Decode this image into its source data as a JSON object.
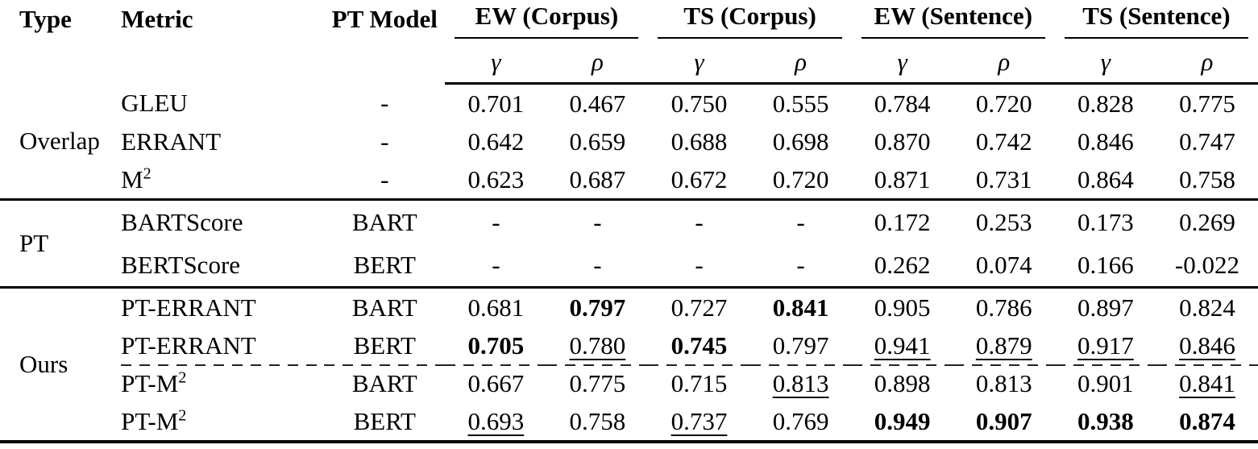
{
  "table": {
    "columns": {
      "type": "Type",
      "metric": "Metric",
      "pt_model": "PT Model"
    },
    "subcol_labels": {
      "gamma": "γ",
      "rho": "ρ"
    },
    "groups": [
      {
        "label": "EW (Corpus)"
      },
      {
        "label": "TS (Corpus)"
      },
      {
        "label": "EW (Sentence)"
      },
      {
        "label": "TS (Sentence)"
      }
    ],
    "sections": [
      {
        "type_label": "Overlap",
        "rows": [
          {
            "metric": "GLEU",
            "metric_sup": "",
            "pt_model": "-",
            "values": [
              {
                "t": "0.701",
                "s": "p"
              },
              {
                "t": "0.467",
                "s": "p"
              },
              {
                "t": "0.750",
                "s": "p"
              },
              {
                "t": "0.555",
                "s": "p"
              },
              {
                "t": "0.784",
                "s": "p"
              },
              {
                "t": "0.720",
                "s": "p"
              },
              {
                "t": "0.828",
                "s": "p"
              },
              {
                "t": "0.775",
                "s": "p"
              }
            ]
          },
          {
            "metric": "ERRANT",
            "metric_sup": "",
            "pt_model": "-",
            "values": [
              {
                "t": "0.642",
                "s": "p"
              },
              {
                "t": "0.659",
                "s": "p"
              },
              {
                "t": "0.688",
                "s": "p"
              },
              {
                "t": "0.698",
                "s": "p"
              },
              {
                "t": "0.870",
                "s": "p"
              },
              {
                "t": "0.742",
                "s": "p"
              },
              {
                "t": "0.846",
                "s": "p"
              },
              {
                "t": "0.747",
                "s": "p"
              }
            ]
          },
          {
            "metric": "M",
            "metric_sup": "2",
            "pt_model": "-",
            "values": [
              {
                "t": "0.623",
                "s": "p"
              },
              {
                "t": "0.687",
                "s": "p"
              },
              {
                "t": "0.672",
                "s": "p"
              },
              {
                "t": "0.720",
                "s": "p"
              },
              {
                "t": "0.871",
                "s": "p"
              },
              {
                "t": "0.731",
                "s": "p"
              },
              {
                "t": "0.864",
                "s": "p"
              },
              {
                "t": "0.758",
                "s": "p"
              }
            ]
          }
        ]
      },
      {
        "type_label": "PT",
        "tall": true,
        "rows": [
          {
            "metric": "BARTScore",
            "metric_sup": "",
            "pt_model": "BART",
            "values": [
              {
                "t": "-",
                "s": "p"
              },
              {
                "t": "-",
                "s": "p"
              },
              {
                "t": "-",
                "s": "p"
              },
              {
                "t": "-",
                "s": "p"
              },
              {
                "t": "0.172",
                "s": "p"
              },
              {
                "t": "0.253",
                "s": "p"
              },
              {
                "t": "0.173",
                "s": "p"
              },
              {
                "t": "0.269",
                "s": "p"
              }
            ]
          },
          {
            "metric": "BERTScore",
            "metric_sup": "",
            "pt_model": "BERT",
            "values": [
              {
                "t": "-",
                "s": "p"
              },
              {
                "t": "-",
                "s": "p"
              },
              {
                "t": "-",
                "s": "p"
              },
              {
                "t": "-",
                "s": "p"
              },
              {
                "t": "0.262",
                "s": "p"
              },
              {
                "t": "0.074",
                "s": "p"
              },
              {
                "t": "0.166",
                "s": "p"
              },
              {
                "t": "-0.022",
                "s": "p"
              }
            ]
          }
        ]
      },
      {
        "type_label": "Ours",
        "rows": [
          {
            "metric": "PT-ERRANT",
            "metric_sup": "",
            "pt_model": "BART",
            "values": [
              {
                "t": "0.681",
                "s": "p"
              },
              {
                "t": "0.797",
                "s": "b"
              },
              {
                "t": "0.727",
                "s": "p"
              },
              {
                "t": "0.841",
                "s": "b"
              },
              {
                "t": "0.905",
                "s": "p"
              },
              {
                "t": "0.786",
                "s": "p"
              },
              {
                "t": "0.897",
                "s": "p"
              },
              {
                "t": "0.824",
                "s": "p"
              }
            ]
          },
          {
            "metric": "PT-ERRANT",
            "metric_sup": "",
            "pt_model": "BERT",
            "values": [
              {
                "t": "0.705",
                "s": "b"
              },
              {
                "t": "0.780",
                "s": "u"
              },
              {
                "t": "0.745",
                "s": "b"
              },
              {
                "t": "0.797",
                "s": "p"
              },
              {
                "t": "0.941",
                "s": "u"
              },
              {
                "t": "0.879",
                "s": "u"
              },
              {
                "t": "0.917",
                "s": "u"
              },
              {
                "t": "0.846",
                "s": "u"
              }
            ]
          },
          {
            "metric": "PT-M",
            "metric_sup": "2",
            "pt_model": "BART",
            "dashed_before": true,
            "values": [
              {
                "t": "0.667",
                "s": "p"
              },
              {
                "t": "0.775",
                "s": "p"
              },
              {
                "t": "0.715",
                "s": "p"
              },
              {
                "t": "0.813",
                "s": "u"
              },
              {
                "t": "0.898",
                "s": "p"
              },
              {
                "t": "0.813",
                "s": "p"
              },
              {
                "t": "0.901",
                "s": "p"
              },
              {
                "t": "0.841",
                "s": "u"
              }
            ]
          },
          {
            "metric": "PT-M",
            "metric_sup": "2",
            "pt_model": "BERT",
            "values": [
              {
                "t": "0.693",
                "s": "u"
              },
              {
                "t": "0.758",
                "s": "p"
              },
              {
                "t": "0.737",
                "s": "u"
              },
              {
                "t": "0.769",
                "s": "p"
              },
              {
                "t": "0.949",
                "s": "b"
              },
              {
                "t": "0.907",
                "s": "b"
              },
              {
                "t": "0.938",
                "s": "b"
              },
              {
                "t": "0.874",
                "s": "b"
              }
            ]
          }
        ]
      }
    ]
  },
  "colors": {
    "text": "#000000",
    "background": "#ffffff",
    "rule": "#000000"
  }
}
